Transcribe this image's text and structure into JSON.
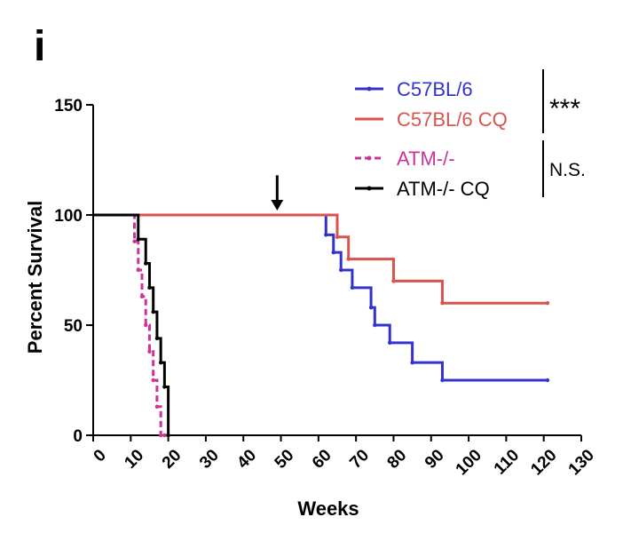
{
  "chart_data": {
    "type": "line",
    "subtype": "kaplan-meier-step",
    "panel_label": "i",
    "xlabel": "Weeks",
    "ylabel": "Percent Survival",
    "xlim": [
      0,
      130
    ],
    "ylim": [
      0,
      150
    ],
    "x_ticks": [
      0,
      10,
      20,
      30,
      40,
      50,
      60,
      70,
      80,
      90,
      100,
      110,
      120,
      130
    ],
    "y_ticks": [
      0,
      50,
      100,
      150
    ],
    "grid": false,
    "legend_position": "top-right",
    "series": [
      {
        "name": "C57BL/6",
        "color": "#3333cc",
        "dash": "solid",
        "x": [
          0,
          62,
          64,
          66,
          69,
          74,
          75,
          79,
          85,
          93,
          121
        ],
        "y": [
          100,
          91,
          83,
          75,
          67,
          58,
          50,
          42,
          33,
          25,
          25
        ]
      },
      {
        "name": "C57BL/6 CQ",
        "color": "#d9534f",
        "dash": "solid",
        "x": [
          0,
          65,
          68,
          80,
          93,
          121
        ],
        "y": [
          100,
          90,
          80,
          70,
          60,
          60
        ]
      },
      {
        "name": "ATM-/-",
        "color": "#cc3399",
        "dash": "dashed",
        "x": [
          0,
          11,
          12,
          13,
          14,
          15,
          16,
          17,
          18,
          19,
          20
        ],
        "y": [
          100,
          88,
          75,
          63,
          50,
          38,
          25,
          13,
          0,
          0,
          0
        ]
      },
      {
        "name": "ATM-/- CQ",
        "color": "#000000",
        "dash": "solid",
        "x": [
          0,
          12,
          14,
          15,
          16,
          17,
          18,
          19,
          20
        ],
        "y": [
          100,
          89,
          78,
          67,
          56,
          44,
          33,
          22,
          0
        ]
      }
    ],
    "annotations": [
      {
        "type": "arrow-down",
        "x": 49,
        "y_top": 118,
        "y_bottom": 102
      },
      {
        "type": "significance",
        "text": "***",
        "groups": [
          "C57BL/6",
          "C57BL/6 CQ"
        ]
      },
      {
        "type": "significance",
        "text": "N.S.",
        "groups": [
          "ATM-/-",
          "ATM-/- CQ"
        ]
      }
    ]
  }
}
